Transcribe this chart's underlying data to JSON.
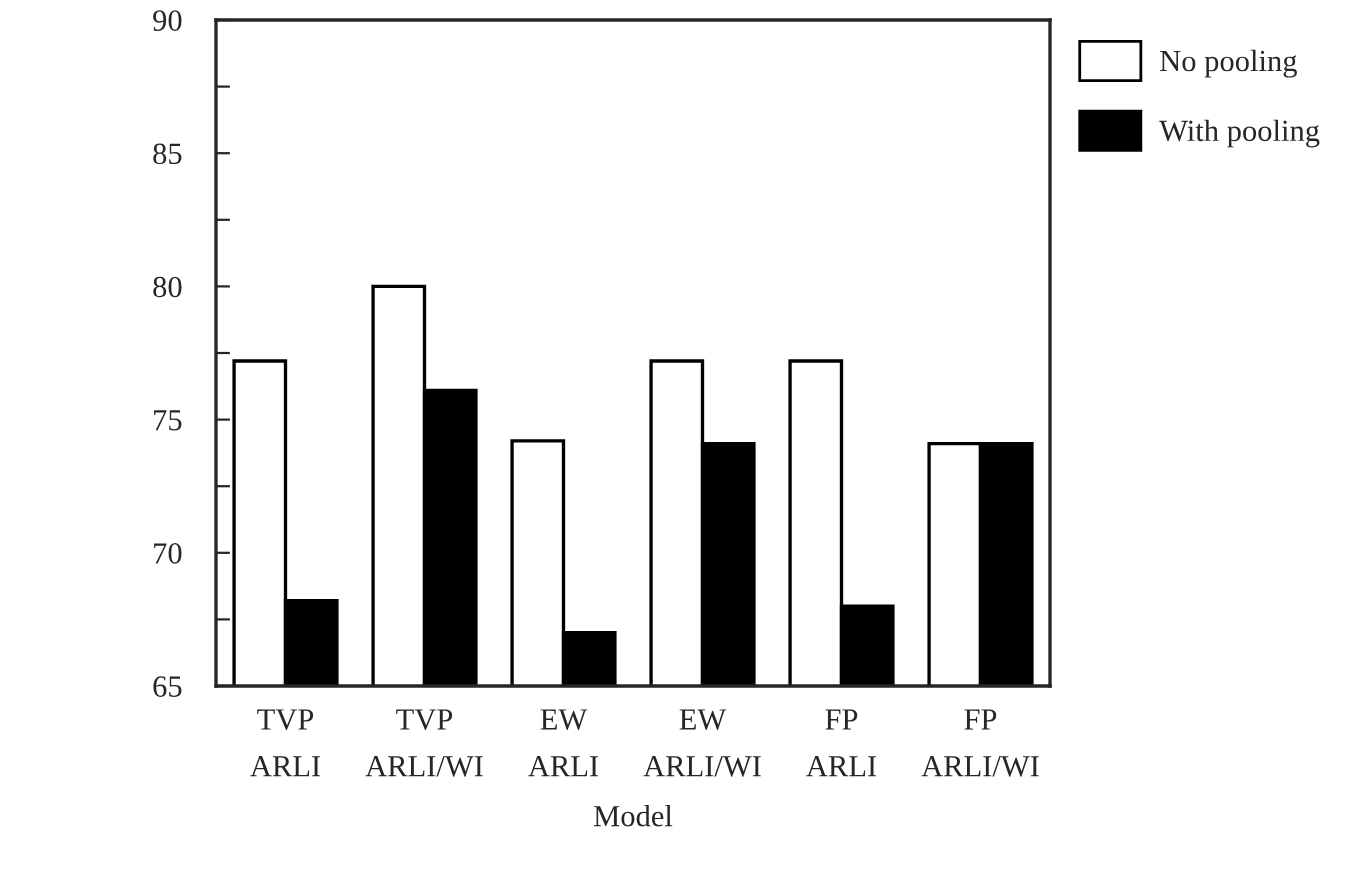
{
  "chart_data": {
    "type": "bar",
    "xlabel": "Model",
    "categories": [
      "TVP\nARLI",
      "TVP\nARLI/WI",
      "EW\nARLI",
      "EW\nARLI/WI",
      "FP\nARLI",
      "FP\nARLI/WI"
    ],
    "series": [
      {
        "name": "No pooling",
        "color": "#ffffff",
        "values": [
          77.2,
          80.0,
          74.2,
          77.2,
          77.2,
          74.1
        ]
      },
      {
        "name": "With pooling",
        "color": "#000000",
        "values": [
          68.2,
          76.1,
          67.0,
          74.1,
          68.0,
          74.1
        ]
      }
    ],
    "ylim": [
      65,
      90
    ],
    "yticks": [
      65,
      {
        "value": 67.5,
        "label": null
      },
      70,
      {
        "value": 72.5,
        "label": null
      },
      75,
      {
        "value": 77.5,
        "label": null
      },
      80,
      {
        "value": 82.5,
        "label": null
      },
      85,
      {
        "value": 87.5,
        "label": null
      },
      90
    ],
    "grid": false,
    "legend": "top right"
  }
}
